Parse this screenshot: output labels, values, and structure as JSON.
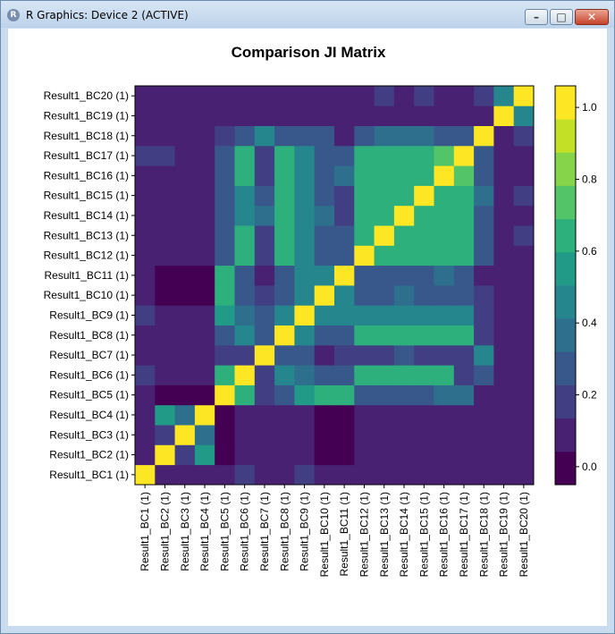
{
  "window": {
    "title": "R Graphics: Device 2 (ACTIVE)",
    "icon": "r-logo-icon",
    "controls": [
      "minimize-icon",
      "maximize-icon",
      "close-icon"
    ]
  },
  "chart_data": {
    "type": "heatmap",
    "title": "Comparison JI Matrix",
    "x_labels": [
      "Result1_BC1 (1)",
      "Result1_BC2 (1)",
      "Result1_BC3 (1)",
      "Result1_BC4 (1)",
      "Result1_BC5 (1)",
      "Result1_BC6 (1)",
      "Result1_BC7 (1)",
      "Result1_BC8 (1)",
      "Result1_BC9 (1)",
      "Result1_BC10 (1)",
      "Result1_BC11 (1)",
      "Result1_BC12 (1)",
      "Result1_BC13 (1)",
      "Result1_BC14 (1)",
      "Result1_BC15 (1)",
      "Result1_BC16 (1)",
      "Result1_BC17 (1)",
      "Result1_BC18 (1)",
      "Result1_BC19 (1)",
      "Result1_BC20 (1)"
    ],
    "y_labels": [
      "Result1_BC1 (1)",
      "Result1_BC2 (1)",
      "Result1_BC3 (1)",
      "Result1_BC4 (1)",
      "Result1_BC5 (1)",
      "Result1_BC6 (1)",
      "Result1_BC7 (1)",
      "Result1_BC8 (1)",
      "Result1_BC9 (1)",
      "Result1_BC10 (1)",
      "Result1_BC11 (1)",
      "Result1_BC12 (1)",
      "Result1_BC13 (1)",
      "Result1_BC14 (1)",
      "Result1_BC15 (1)",
      "Result1_BC16 (1)",
      "Result1_BC17 (1)",
      "Result1_BC18 (1)",
      "Result1_BC19 (1)",
      "Result1_BC20 (1)"
    ],
    "values": [
      [
        1.0,
        0.05,
        0.05,
        0.05,
        0.12,
        0.15,
        0.06,
        0.12,
        0.15,
        0.1,
        0.1,
        0.1,
        0.1,
        0.1,
        0.1,
        0.1,
        0.1,
        0.08,
        0.08,
        0.08
      ],
      [
        0.05,
        1.0,
        0.2,
        0.55,
        0.0,
        0.05,
        0.05,
        0.05,
        0.05,
        0.0,
        0.0,
        0.05,
        0.05,
        0.05,
        0.05,
        0.05,
        0.1,
        0.05,
        0.05,
        0.05
      ],
      [
        0.05,
        0.2,
        1.0,
        0.4,
        0.0,
        0.05,
        0.05,
        0.05,
        0.05,
        0.0,
        0.0,
        0.05,
        0.05,
        0.05,
        0.05,
        0.05,
        0.05,
        0.05,
        0.05,
        0.05
      ],
      [
        0.05,
        0.55,
        0.4,
        1.0,
        0.0,
        0.05,
        0.05,
        0.05,
        0.05,
        0.0,
        0.0,
        0.05,
        0.05,
        0.05,
        0.05,
        0.05,
        0.1,
        0.05,
        0.1,
        0.1
      ],
      [
        0.12,
        0.0,
        0.0,
        0.0,
        1.0,
        0.6,
        0.2,
        0.28,
        0.52,
        0.6,
        0.6,
        0.28,
        0.28,
        0.28,
        0.28,
        0.32,
        0.32,
        0.1,
        0.05,
        0.05
      ],
      [
        0.15,
        0.05,
        0.05,
        0.05,
        0.6,
        1.0,
        0.2,
        0.45,
        0.4,
        0.24,
        0.24,
        0.6,
        0.6,
        0.6,
        0.6,
        0.6,
        0.2,
        0.28,
        0.1,
        0.1
      ],
      [
        0.06,
        0.05,
        0.05,
        0.05,
        0.2,
        0.2,
        1.0,
        0.24,
        0.28,
        0.1,
        0.2,
        0.2,
        0.2,
        0.3,
        0.2,
        0.2,
        0.2,
        0.45,
        0.1,
        0.1
      ],
      [
        0.12,
        0.05,
        0.05,
        0.05,
        0.28,
        0.45,
        0.24,
        1.0,
        0.5,
        0.24,
        0.24,
        0.6,
        0.6,
        0.6,
        0.6,
        0.6,
        0.6,
        0.2,
        0.1,
        0.1
      ],
      [
        0.15,
        0.05,
        0.05,
        0.05,
        0.52,
        0.4,
        0.28,
        0.5,
        1.0,
        0.5,
        0.5,
        0.5,
        0.5,
        0.5,
        0.5,
        0.5,
        0.5,
        0.2,
        0.1,
        0.1
      ],
      [
        0.1,
        0.0,
        0.0,
        0.0,
        0.6,
        0.24,
        0.15,
        0.3,
        0.5,
        1.0,
        0.5,
        0.3,
        0.3,
        0.35,
        0.3,
        0.3,
        0.3,
        0.2,
        0.05,
        0.05
      ],
      [
        0.1,
        0.0,
        0.0,
        0.0,
        0.6,
        0.24,
        0.1,
        0.24,
        0.5,
        0.5,
        1.0,
        0.24,
        0.24,
        0.24,
        0.24,
        0.35,
        0.3,
        0.1,
        0.05,
        0.05
      ],
      [
        0.1,
        0.05,
        0.05,
        0.05,
        0.28,
        0.6,
        0.2,
        0.6,
        0.5,
        0.3,
        0.3,
        1.0,
        0.65,
        0.6,
        0.6,
        0.6,
        0.6,
        0.3,
        0.1,
        0.1
      ],
      [
        0.1,
        0.05,
        0.05,
        0.05,
        0.28,
        0.6,
        0.2,
        0.6,
        0.5,
        0.3,
        0.3,
        0.65,
        1.0,
        0.6,
        0.6,
        0.65,
        0.65,
        0.3,
        0.1,
        0.2
      ],
      [
        0.1,
        0.05,
        0.05,
        0.05,
        0.28,
        0.5,
        0.35,
        0.6,
        0.5,
        0.35,
        0.2,
        0.6,
        0.6,
        1.0,
        0.6,
        0.6,
        0.6,
        0.3,
        0.1,
        0.1
      ],
      [
        0.1,
        0.05,
        0.05,
        0.05,
        0.24,
        0.5,
        0.24,
        0.6,
        0.5,
        0.3,
        0.2,
        0.6,
        0.6,
        0.6,
        1.0,
        0.6,
        0.6,
        0.35,
        0.1,
        0.2
      ],
      [
        0.1,
        0.05,
        0.05,
        0.05,
        0.24,
        0.6,
        0.2,
        0.6,
        0.5,
        0.3,
        0.35,
        0.6,
        0.6,
        0.6,
        0.6,
        1.0,
        0.7,
        0.24,
        0.1,
        0.1
      ],
      [
        0.15,
        0.15,
        0.05,
        0.1,
        0.24,
        0.6,
        0.2,
        0.6,
        0.5,
        0.3,
        0.3,
        0.6,
        0.6,
        0.6,
        0.6,
        0.7,
        1.0,
        0.3,
        0.1,
        0.1
      ],
      [
        0.08,
        0.05,
        0.05,
        0.05,
        0.2,
        0.24,
        0.45,
        0.24,
        0.24,
        0.24,
        0.1,
        0.3,
        0.35,
        0.35,
        0.35,
        0.24,
        0.24,
        1.0,
        0.1,
        0.2
      ],
      [
        0.05,
        0.05,
        0.05,
        0.1,
        0.08,
        0.1,
        0.1,
        0.1,
        0.1,
        0.05,
        0.05,
        0.1,
        0.1,
        0.1,
        0.1,
        0.1,
        0.1,
        0.1,
        1.0,
        0.45
      ],
      [
        0.05,
        0.05,
        0.05,
        0.12,
        0.05,
        0.1,
        0.1,
        0.1,
        0.1,
        0.05,
        0.05,
        0.1,
        0.15,
        0.1,
        0.15,
        0.1,
        0.1,
        0.15,
        0.45,
        1.0
      ]
    ],
    "zlim": [
      -0.05,
      1.06
    ],
    "colorbar_ticks": [
      0.0,
      0.2,
      0.4,
      0.6,
      0.8,
      1.0
    ],
    "colorbar_tick_labels": [
      "0.0",
      "0.2",
      "0.4",
      "0.6",
      "0.8",
      "1.0"
    ],
    "colormap": "viridis",
    "colorbar_levels": 12,
    "colorbar_placement": "right",
    "grid": false
  }
}
